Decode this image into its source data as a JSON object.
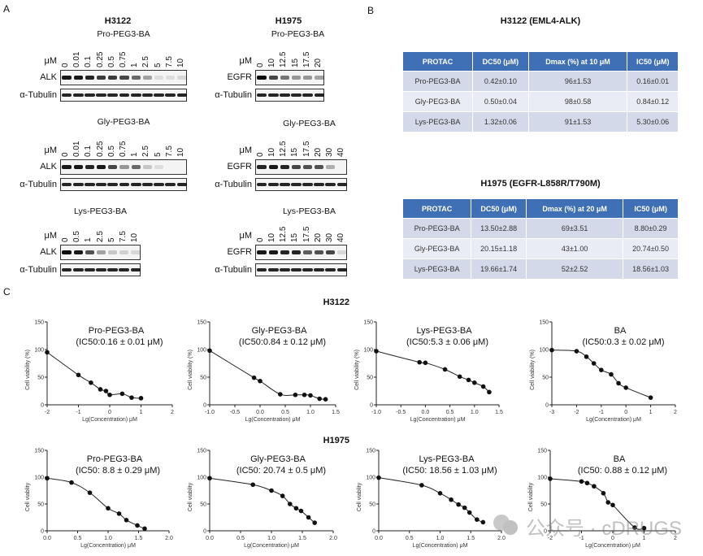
{
  "panels": {
    "a": "A",
    "b": "B",
    "c": "C"
  },
  "panel_a": {
    "cell_lines": [
      "H3122",
      "H1975"
    ],
    "unit": "μM",
    "loading_control": "α-Tubulin",
    "blots": [
      {
        "cell_line": "H3122",
        "compound": "Pro-PEG3-BA",
        "target": "ALK",
        "concentrations": [
          "0",
          "0.01",
          "0.1",
          "0.25",
          "0.5",
          "0.75",
          "1",
          "2.5",
          "5",
          "7.5",
          "10"
        ],
        "band_intensity": [
          0.95,
          0.95,
          0.9,
          0.8,
          0.8,
          0.75,
          0.6,
          0.35,
          0.1,
          0.1,
          0.12
        ]
      },
      {
        "cell_line": "H3122",
        "compound": "Gly-PEG3-BA",
        "target": "ALK",
        "concentrations": [
          "0",
          "0.01",
          "0.1",
          "0.25",
          "0.5",
          "0.75",
          "1",
          "2.5",
          "5",
          "7.5",
          "10"
        ],
        "band_intensity": [
          0.95,
          0.95,
          0.9,
          0.95,
          0.75,
          0.4,
          0.6,
          0.2,
          0.1,
          0,
          0
        ]
      },
      {
        "cell_line": "H3122",
        "compound": "Lys-PEG3-BA",
        "target": "ALK",
        "concentrations": [
          "0",
          "0.5",
          "1",
          "2.5",
          "5",
          "7.5",
          "10"
        ],
        "band_intensity": [
          1,
          0.95,
          0.7,
          0.35,
          0.2,
          0.15,
          0.12
        ]
      },
      {
        "cell_line": "H1975",
        "compound": "Pro-PEG3-BA",
        "target": "EGFR",
        "concentrations": [
          "0",
          "10",
          "12.5",
          "15",
          "17.5",
          "20"
        ],
        "band_intensity": [
          1,
          0.75,
          0.55,
          0.4,
          0.4,
          0.35
        ]
      },
      {
        "cell_line": "H1975",
        "compound": "Gly-PEG3-BA",
        "target": "EGFR",
        "concentrations": [
          "0",
          "10",
          "12.5",
          "15",
          "17.5",
          "20",
          "30",
          "40"
        ],
        "band_intensity": [
          0.9,
          0.95,
          0.9,
          0.75,
          0.7,
          0.7,
          0.3,
          0
        ]
      },
      {
        "cell_line": "H1975",
        "compound": "Lys-PEG3-BA",
        "target": "EGFR",
        "concentrations": [
          "0",
          "10",
          "12.5",
          "15",
          "17.5",
          "20",
          "30",
          "40"
        ],
        "band_intensity": [
          0.95,
          0.95,
          0.9,
          0.9,
          0.65,
          0.7,
          0.75,
          0.12
        ]
      }
    ]
  },
  "panel_b": {
    "tables": [
      {
        "title": "H3122 (EML4-ALK)",
        "headers": [
          "PROTAC",
          "DC50 (μM)",
          "Dmax (%) at 10 μM",
          "IC50 (μM)"
        ],
        "rows": [
          [
            "Pro-PEG3-BA",
            "0.42±0.10",
            "96±1.53",
            "0.16±0.01"
          ],
          [
            "Gly-PEG3-BA",
            "0.50±0.04",
            "98±0.58",
            "0.84±0.12"
          ],
          [
            "Lys-PEG3-BA",
            "1.32±0.06",
            "91±1.53",
            "5.30±0.06"
          ]
        ]
      },
      {
        "title": "H1975 (EGFR-L858R/T790M)",
        "headers": [
          "PROTAC",
          "DC50 (μM)",
          "Dmax (%) at 20 μM",
          "IC50 (μM)"
        ],
        "rows": [
          [
            "Pro-PEG3-BA",
            "13.50±2.88",
            "69±3.51",
            "8.80±0.29"
          ],
          [
            "Gly-PEG3-BA",
            "20.15±1.18",
            "43±1.00",
            "20.74±0.50"
          ],
          [
            "Lys-PEG3-BA",
            "19.66±1.74",
            "52±2.52",
            "18.56±1.03"
          ]
        ]
      }
    ],
    "header_color": "#3f6fb5"
  },
  "panel_c": {
    "row_labels": [
      "H3122",
      "H1975"
    ]
  },
  "chart_data": [
    {
      "type": "scatter",
      "row": "H3122",
      "title": "Pro-PEG3-BA",
      "subtitle": "(IC50:0.16 ± 0.01 μM)",
      "xlabel": "Lg(Concentration) μM",
      "ylabel": "Cell viability (%)",
      "xlim": [
        -2,
        2
      ],
      "ylim": [
        0,
        150
      ],
      "xticks": [
        "-2",
        "-1",
        "0",
        "1",
        "2"
      ],
      "yticks": [
        "0",
        "50",
        "100",
        "150"
      ],
      "x": [
        -2,
        -1,
        -0.6,
        -0.3,
        -0.12,
        0,
        0.4,
        0.7,
        1
      ],
      "y": [
        95,
        54,
        40,
        28,
        25,
        18,
        20,
        13,
        12
      ],
      "fit_curve": true
    },
    {
      "type": "scatter",
      "row": "H3122",
      "title": "Gly-PEG3-BA",
      "subtitle": "(IC50:0.84 ± 0.12 μM)",
      "xlabel": "Lg(Concentration) μM",
      "ylabel": "Cell viability (%)",
      "xlim": [
        -1,
        1.5
      ],
      "ylim": [
        0,
        150
      ],
      "xticks": [
        "-1.0",
        "-0.5",
        "0.0",
        "0.5",
        "1.0",
        "1.5"
      ],
      "yticks": [
        "0",
        "50",
        "100",
        "150"
      ],
      "x": [
        -1,
        -0.12,
        0,
        0.4,
        0.7,
        0.88,
        1,
        1.18,
        1.3
      ],
      "y": [
        98,
        49,
        43,
        19,
        18,
        18,
        17,
        11,
        10
      ],
      "fit_curve": true
    },
    {
      "type": "scatter",
      "row": "H3122",
      "title": "Lys-PEG3-BA",
      "subtitle": "(IC50:5.3 ± 0.06 μM)",
      "xlabel": "Lg(Concentration) μM",
      "ylabel": "Cell viability (%)",
      "xlim": [
        -1,
        1.5
      ],
      "ylim": [
        0,
        150
      ],
      "xticks": [
        "-1.0",
        "-0.5",
        "0.0",
        "0.5",
        "1.0",
        "1.5"
      ],
      "yticks": [
        "0",
        "50",
        "100",
        "150"
      ],
      "x": [
        -1,
        -0.12,
        0,
        0.4,
        0.7,
        0.88,
        1,
        1.18,
        1.3
      ],
      "y": [
        97,
        77,
        76,
        64,
        51,
        45,
        40,
        33,
        23
      ],
      "fit_curve": true
    },
    {
      "type": "scatter",
      "row": "H3122",
      "title": "BA",
      "subtitle": "(IC50:0.3 ± 0.02 μM)",
      "xlabel": "Lg(Concentration) μM",
      "ylabel": "Cell viability (%)",
      "xlim": [
        -3,
        2
      ],
      "ylim": [
        0,
        150
      ],
      "xticks": [
        "-3",
        "-2",
        "-1",
        "0",
        "1",
        "2"
      ],
      "yticks": [
        "0",
        "50",
        "100",
        "150"
      ],
      "x": [
        -3,
        -2,
        -1.6,
        -1.3,
        -1,
        -0.6,
        -0.3,
        0,
        1
      ],
      "y": [
        99,
        97,
        87,
        75,
        63,
        55,
        39,
        31,
        13
      ],
      "fit_curve": true
    },
    {
      "type": "scatter",
      "row": "H1975",
      "title": "Pro-PEG3-BA",
      "subtitle": "(IC50: 8.8 ± 0.29 μM)",
      "xlabel": "Lg(Concentration) μM",
      "ylabel": "Cell viablity",
      "xlim": [
        0,
        2
      ],
      "ylim": [
        0,
        150
      ],
      "xticks": [
        "0.0",
        "0.5",
        "1.0",
        "1.5",
        "2.0"
      ],
      "yticks": [
        "0",
        "50",
        "100",
        "150"
      ],
      "x": [
        0,
        0.4,
        0.7,
        1,
        1.18,
        1.3,
        1.48,
        1.6
      ],
      "y": [
        98,
        90,
        71,
        42,
        32,
        20,
        10,
        4
      ],
      "fit_curve": true
    },
    {
      "type": "scatter",
      "row": "H1975",
      "title": "Gly-PEG3-BA",
      "subtitle": "(IC50: 20.74 ± 0.5 μM)",
      "xlabel": "Lg(Concentration) μM",
      "ylabel": "Cell viablity",
      "xlim": [
        0,
        2
      ],
      "ylim": [
        0,
        150
      ],
      "xticks": [
        "0.0",
        "0.5",
        "1.0",
        "1.5",
        "2.0"
      ],
      "yticks": [
        "0",
        "50",
        "100",
        "150"
      ],
      "x": [
        0,
        0.7,
        1,
        1.18,
        1.3,
        1.4,
        1.48,
        1.6,
        1.7
      ],
      "y": [
        98,
        86,
        75,
        65,
        50,
        42,
        37,
        25,
        15
      ],
      "fit_curve": true
    },
    {
      "type": "scatter",
      "row": "H1975",
      "title": "Lys-PEG3-BA",
      "subtitle": "(IC50: 18.56 ± 1.03 μM)",
      "xlabel": "Lg(Concentration) μM",
      "ylabel": "Cell viablity",
      "xlim": [
        0,
        2
      ],
      "ylim": [
        0,
        150
      ],
      "xticks": [
        "0.0",
        "0.5",
        "1.0",
        "1.5",
        "2.0"
      ],
      "yticks": [
        "0",
        "50",
        "100",
        "150"
      ],
      "x": [
        0,
        0.7,
        1,
        1.18,
        1.3,
        1.4,
        1.48,
        1.6,
        1.7
      ],
      "y": [
        99,
        85,
        70,
        58,
        49,
        43,
        34,
        21,
        16
      ],
      "fit_curve": true
    },
    {
      "type": "scatter",
      "row": "H1975",
      "title": "BA",
      "subtitle": "(IC50: 0.88 ± 0.12 μM)",
      "xlabel": "Lg(Concentration) μM",
      "ylabel": "Cell viablity",
      "xlim": [
        -2,
        2
      ],
      "ylim": [
        0,
        150
      ],
      "xticks": [
        "-2",
        "-1",
        "0",
        "1",
        "2"
      ],
      "yticks": [
        "0",
        "50",
        "100",
        "150"
      ],
      "x": [
        -2,
        -1,
        -0.82,
        -0.6,
        -0.3,
        -0.15,
        0,
        0.7,
        1
      ],
      "y": [
        97,
        92,
        89,
        83,
        70,
        53,
        48,
        6,
        5
      ],
      "fit_curve": true
    }
  ],
  "watermark": "公众号 · cDRUGS"
}
